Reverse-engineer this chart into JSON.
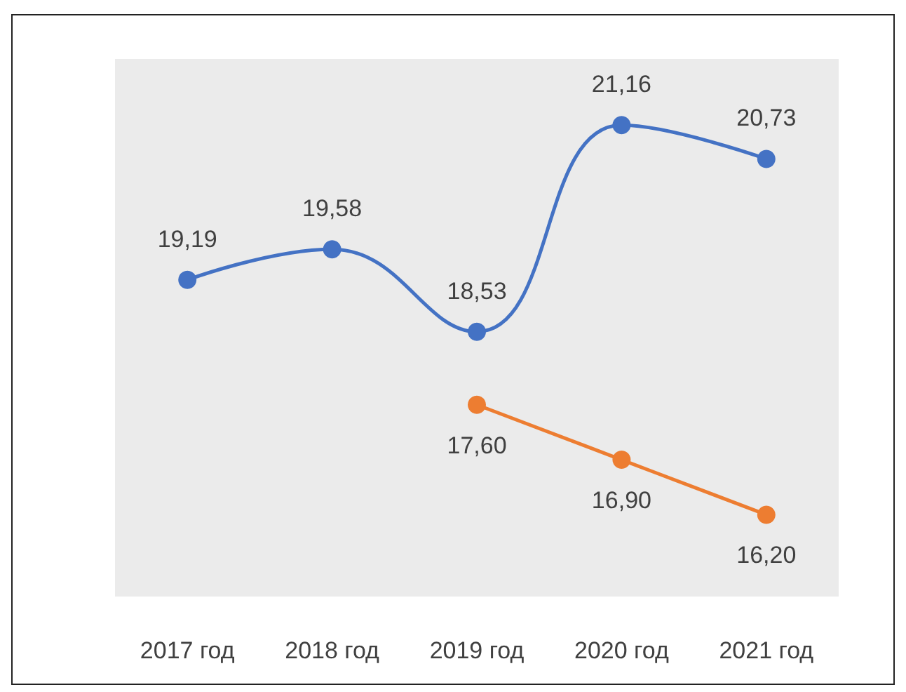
{
  "chart_data": {
    "type": "line",
    "categories": [
      "2017 год",
      "2018 год",
      "2019 год",
      "2020 год",
      "2021 год"
    ],
    "series": [
      {
        "color": "#4472c4",
        "values": [
          19.19,
          19.58,
          18.53,
          21.16,
          20.73
        ],
        "value_labels": [
          "19,19",
          "19,58",
          "18,53",
          "21,16",
          "20,73"
        ]
      },
      {
        "color": "#ed7d31",
        "values": [
          null,
          null,
          17.6,
          16.9,
          16.2
        ],
        "value_labels": [
          null,
          null,
          "17,60",
          "16,90",
          "16,20"
        ]
      }
    ],
    "marker": "circle",
    "line_style": "solid"
  }
}
